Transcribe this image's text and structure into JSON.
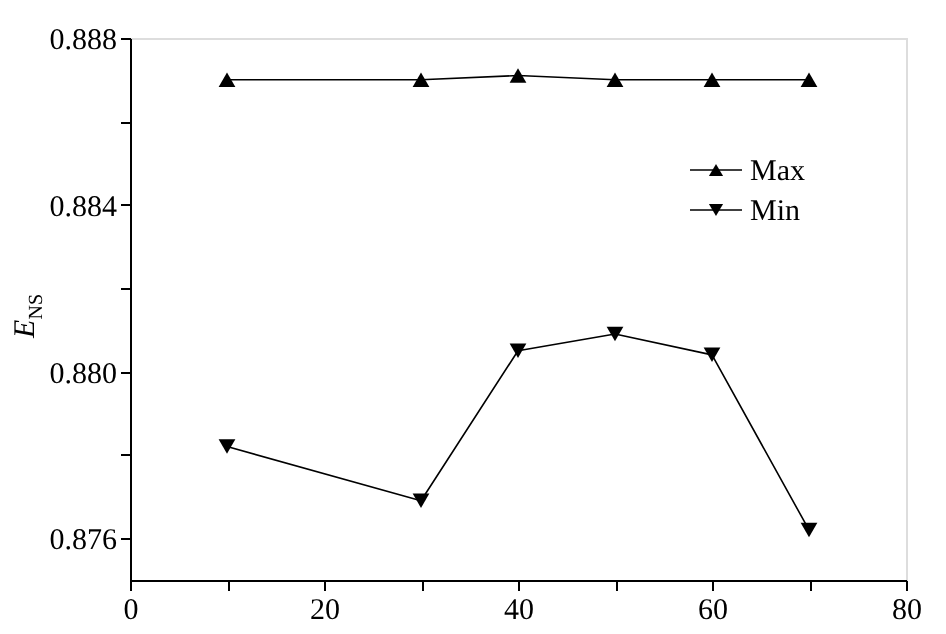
{
  "chart_data": {
    "type": "line",
    "ylabel": "E$_{NS}$",
    "x": [
      10,
      30,
      40,
      50,
      60,
      70
    ],
    "series": [
      {
        "name": "Max",
        "color": "#000000",
        "marker": "triangle",
        "values": [
          0.887,
          0.887,
          0.8871,
          0.887,
          0.887,
          0.887
        ]
      },
      {
        "name": "Min",
        "color": "#000000",
        "marker": "triangle-down",
        "values": [
          0.8782,
          0.8769,
          0.8805,
          0.8809,
          0.8804,
          0.8762
        ]
      }
    ],
    "xlim": [
      0,
      80
    ],
    "xticks": [
      0,
      {
        "value": 10,
        "label": null
      },
      20,
      {
        "value": 30,
        "label": null
      },
      40,
      {
        "value": 50,
        "label": null
      },
      60,
      {
        "value": 70,
        "label": null
      },
      80
    ],
    "ylim": [
      0.875,
      0.888
    ],
    "yticks": [
      {
        "value": 0.876,
        "label": "0.876"
      },
      {
        "value": 0.878,
        "label": null
      },
      {
        "value": 0.88,
        "label": "0.880"
      },
      {
        "value": 0.882,
        "label": null
      },
      {
        "value": 0.884,
        "label": "0.884"
      },
      {
        "value": 0.886,
        "label": null
      },
      {
        "value": 0.888,
        "label": "0.888"
      }
    ],
    "line_style": "solid",
    "grid": false,
    "legend": "top right"
  }
}
